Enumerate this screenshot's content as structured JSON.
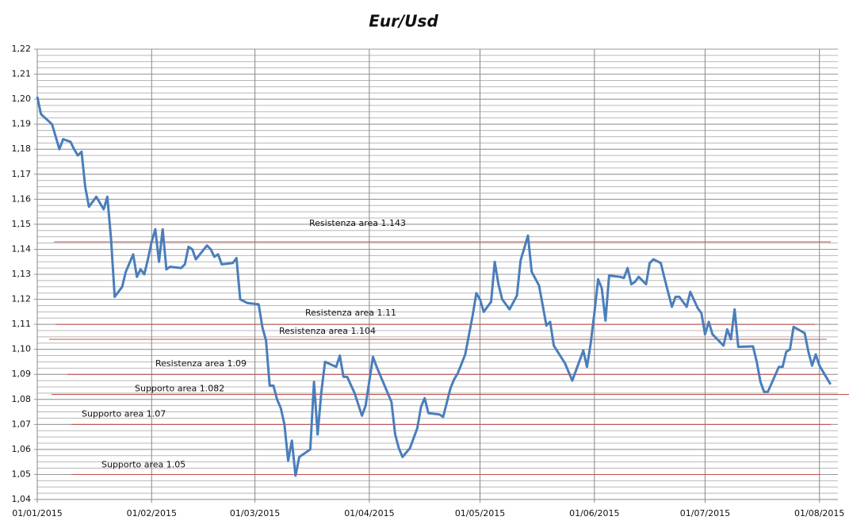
{
  "chart_data": {
    "type": "line",
    "title": "Eur/Usd",
    "color": "#4a7ebb",
    "x": [
      "2015-01-01",
      "2015-01-02",
      "2015-01-05",
      "2015-01-06",
      "2015-01-07",
      "2015-01-08",
      "2015-01-10",
      "2015-01-11",
      "2015-01-12",
      "2015-01-13",
      "2015-01-14",
      "2015-01-15",
      "2015-01-17",
      "2015-01-19",
      "2015-01-20",
      "2015-01-21",
      "2015-01-22",
      "2015-01-24",
      "2015-01-25",
      "2015-01-27",
      "2015-01-28",
      "2015-01-29",
      "2015-01-30",
      "2015-01-31",
      "2015-02-01",
      "2015-02-02",
      "2015-02-03",
      "2015-02-04",
      "2015-02-05",
      "2015-02-06",
      "2015-02-09",
      "2015-02-10",
      "2015-02-11",
      "2015-02-12",
      "2015-02-13",
      "2015-02-16",
      "2015-02-17",
      "2015-02-18",
      "2015-02-19",
      "2015-02-20",
      "2015-02-23",
      "2015-02-24",
      "2015-02-25",
      "2015-02-27",
      "2015-03-02",
      "2015-03-03",
      "2015-03-04",
      "2015-03-05",
      "2015-03-06",
      "2015-03-07",
      "2015-03-08",
      "2015-03-09",
      "2015-03-10",
      "2015-03-11",
      "2015-03-12",
      "2015-03-13",
      "2015-03-16",
      "2015-03-17",
      "2015-03-18",
      "2015-03-19",
      "2015-03-20",
      "2015-03-23",
      "2015-03-24",
      "2015-03-25",
      "2015-03-26",
      "2015-03-28",
      "2015-03-30",
      "2015-03-31",
      "2015-04-02",
      "2015-04-03",
      "2015-04-07",
      "2015-04-08",
      "2015-04-09",
      "2015-04-10",
      "2015-04-12",
      "2015-04-14",
      "2015-04-15",
      "2015-04-16",
      "2015-04-17",
      "2015-04-20",
      "2015-04-21",
      "2015-04-23",
      "2015-04-24",
      "2015-04-25",
      "2015-04-27",
      "2015-04-29",
      "2015-04-30",
      "2015-05-01",
      "2015-05-02",
      "2015-05-04",
      "2015-05-05",
      "2015-05-06",
      "2015-05-07",
      "2015-05-09",
      "2015-05-11",
      "2015-05-12",
      "2015-05-13",
      "2015-05-14",
      "2015-05-15",
      "2015-05-17",
      "2015-05-19",
      "2015-05-20",
      "2015-05-21",
      "2015-05-24",
      "2015-05-26",
      "2015-05-29",
      "2015-05-30",
      "2015-05-31",
      "2015-06-01",
      "2015-06-02",
      "2015-06-03",
      "2015-06-04",
      "2015-06-05",
      "2015-06-08",
      "2015-06-09",
      "2015-06-10",
      "2015-06-11",
      "2015-06-12",
      "2015-06-13",
      "2015-06-15",
      "2015-06-16",
      "2015-06-17",
      "2015-06-19",
      "2015-06-20",
      "2015-06-22",
      "2015-06-23",
      "2015-06-24",
      "2015-06-26",
      "2015-06-27",
      "2015-06-29",
      "2015-06-30",
      "2015-07-01",
      "2015-07-02",
      "2015-07-03",
      "2015-07-06",
      "2015-07-07",
      "2015-07-08",
      "2015-07-09",
      "2015-07-10",
      "2015-07-14",
      "2015-07-15",
      "2015-07-16",
      "2015-07-17",
      "2015-07-18",
      "2015-07-21",
      "2015-07-22",
      "2015-07-23",
      "2015-07-24",
      "2015-07-25",
      "2015-07-28",
      "2015-07-29",
      "2015-07-30",
      "2015-07-31",
      "2015-08-01",
      "2015-08-04"
    ],
    "values": [
      1.201,
      1.194,
      1.19,
      1.185,
      1.18,
      1.184,
      1.183,
      1.18,
      1.1775,
      1.179,
      1.165,
      1.157,
      1.161,
      1.156,
      1.161,
      1.144,
      1.121,
      1.125,
      1.131,
      1.138,
      1.129,
      1.132,
      1.13,
      1.136,
      1.143,
      1.148,
      1.135,
      1.148,
      1.132,
      1.133,
      1.1325,
      1.134,
      1.141,
      1.14,
      1.136,
      1.1415,
      1.14,
      1.137,
      1.138,
      1.134,
      1.1345,
      1.1365,
      1.12,
      1.1185,
      1.118,
      1.109,
      1.1035,
      1.0855,
      1.0855,
      1.08,
      1.0765,
      1.07,
      1.0555,
      1.0635,
      1.0495,
      1.057,
      1.06,
      1.087,
      1.066,
      1.083,
      1.095,
      1.093,
      1.0975,
      1.089,
      1.089,
      1.0825,
      1.0735,
      1.0775,
      1.097,
      1.093,
      1.079,
      1.066,
      1.0605,
      1.057,
      1.0605,
      1.0685,
      1.077,
      1.0805,
      1.0745,
      1.074,
      1.073,
      1.0845,
      1.088,
      1.0905,
      1.098,
      1.1135,
      1.1225,
      1.12,
      1.115,
      1.119,
      1.135,
      1.126,
      1.12,
      1.116,
      1.1215,
      1.1355,
      1.1405,
      1.1455,
      1.131,
      1.1255,
      1.1095,
      1.111,
      1.1015,
      1.0945,
      1.0875,
      1.0995,
      1.093,
      1.1025,
      1.1145,
      1.128,
      1.1245,
      1.1115,
      1.1295,
      1.129,
      1.1285,
      1.1325,
      1.126,
      1.127,
      1.129,
      1.126,
      1.1345,
      1.136,
      1.1345,
      1.1285,
      1.117,
      1.121,
      1.121,
      1.117,
      1.123,
      1.1165,
      1.1145,
      1.106,
      1.111,
      1.106,
      1.1015,
      1.108,
      1.104,
      1.116,
      1.101,
      1.1012,
      1.095,
      1.087,
      1.083,
      1.083,
      1.093,
      1.093,
      1.099,
      1.1,
      1.109,
      1.1065,
      1.099,
      1.0935,
      1.098,
      1.0935,
      1.086
    ],
    "xlim": [
      "2015-01-01",
      "2015-08-06"
    ],
    "xticks": [
      {
        "value": "2015-01-01",
        "label": "01/01/2015"
      },
      {
        "value": "2015-02-01",
        "label": "01/02/2015"
      },
      {
        "value": "2015-03-01",
        "label": "01/03/2015"
      },
      {
        "value": "2015-04-01",
        "label": "01/04/2015"
      },
      {
        "value": "2015-05-01",
        "label": "01/05/2015"
      },
      {
        "value": "2015-06-01",
        "label": "01/06/2015"
      },
      {
        "value": "2015-07-01",
        "label": "01/07/2015"
      },
      {
        "value": "2015-08-01",
        "label": "01/08/2015"
      }
    ],
    "ylim": [
      1.04,
      1.22
    ],
    "yticks": [
      {
        "value": 1.04,
        "label": "1,04"
      },
      {
        "value": 1.05,
        "label": "1,05"
      },
      {
        "value": 1.06,
        "label": "1,06"
      },
      {
        "value": 1.07,
        "label": "1,07"
      },
      {
        "value": 1.08,
        "label": "1,08"
      },
      {
        "value": 1.09,
        "label": "1,09"
      },
      {
        "value": 1.1,
        "label": "1,10"
      },
      {
        "value": 1.11,
        "label": "1,11"
      },
      {
        "value": 1.12,
        "label": "1,12"
      },
      {
        "value": 1.13,
        "label": "1,13"
      },
      {
        "value": 1.14,
        "label": "1,14"
      },
      {
        "value": 1.15,
        "label": "1,15"
      },
      {
        "value": 1.16,
        "label": "1,16"
      },
      {
        "value": 1.17,
        "label": "1,17"
      },
      {
        "value": 1.18,
        "label": "1,18"
      },
      {
        "value": 1.19,
        "label": "1,19"
      },
      {
        "value": 1.2,
        "label": "1,20"
      },
      {
        "value": 1.21,
        "label": "1,21"
      },
      {
        "value": 1.22,
        "label": "1,22"
      }
    ],
    "minor_grid_step": 0.0025,
    "grid": true,
    "annotation_color": "#c0504d",
    "annotations": [
      {
        "label": "Resistenza area 1.143",
        "value": 1.143
      },
      {
        "label": "Resistenza area 1.11",
        "value": 1.11
      },
      {
        "label": "Resistenza area 1.104",
        "value": 1.104
      },
      {
        "label": "Resistenza area 1.09",
        "value": 1.09
      },
      {
        "label": "Supporto area 1.082",
        "value": 1.082
      },
      {
        "label": "Supporto area 1.07",
        "value": 1.07
      },
      {
        "label": "Supporto area 1.05",
        "value": 1.05
      }
    ]
  }
}
